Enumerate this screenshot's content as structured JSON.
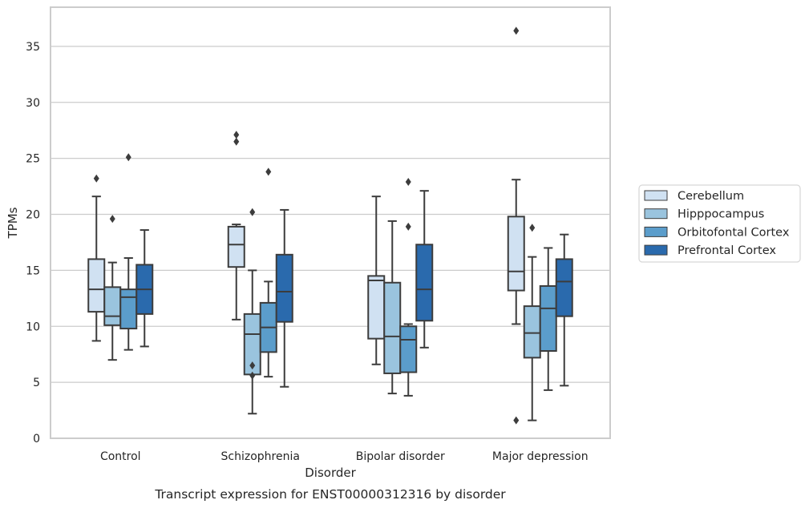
{
  "caption": "Transcript expression for ENST00000312316 by disorder",
  "chart_data": {
    "type": "box",
    "xlabel": "Disorder",
    "ylabel": "TPMs",
    "ylim": [
      0,
      38.5
    ],
    "yticks": [
      0,
      5,
      10,
      15,
      20,
      25,
      30,
      35
    ],
    "grid": "horizontal",
    "legend_position": "right",
    "categories": [
      "Control",
      "Schizophrenia",
      "Bipolar disorder",
      "Major depression"
    ],
    "series": [
      {
        "name": "Cerebellum",
        "color": "#d0e1f2",
        "boxes": [
          {
            "whisker_low": 8.7,
            "q1": 11.3,
            "median": 13.3,
            "q3": 16.0,
            "whisker_high": 21.6,
            "outliers": [
              23.2
            ]
          },
          {
            "whisker_low": 10.6,
            "q1": 15.3,
            "median": 17.3,
            "q3": 18.9,
            "whisker_high": 19.1,
            "outliers": [
              26.5,
              27.1
            ]
          },
          {
            "whisker_low": 6.6,
            "q1": 8.9,
            "median": 14.1,
            "q3": 14.5,
            "whisker_high": 21.6,
            "outliers": []
          },
          {
            "whisker_low": 10.2,
            "q1": 13.2,
            "median": 14.9,
            "q3": 19.8,
            "whisker_high": 23.1,
            "outliers": [
              1.6,
              36.4
            ]
          }
        ]
      },
      {
        "name": "Hipppocampus",
        "color": "#9ac4de",
        "boxes": [
          {
            "whisker_low": 7.0,
            "q1": 10.1,
            "median": 10.9,
            "q3": 13.5,
            "whisker_high": 15.7,
            "outliers": [
              19.6
            ]
          },
          {
            "whisker_low": 2.2,
            "q1": 5.7,
            "median": 9.3,
            "q3": 11.1,
            "whisker_high": 15.0,
            "outliers": [
              5.6,
              6.5,
              20.2
            ]
          },
          {
            "whisker_low": 4.0,
            "q1": 5.8,
            "median": 9.1,
            "q3": 13.9,
            "whisker_high": 19.4,
            "outliers": []
          },
          {
            "whisker_low": 1.6,
            "q1": 7.2,
            "median": 9.4,
            "q3": 11.8,
            "whisker_high": 16.2,
            "outliers": [
              18.8
            ]
          }
        ]
      },
      {
        "name": "Orbitofontal Cortex",
        "color": "#5b9dcb",
        "boxes": [
          {
            "whisker_low": 7.9,
            "q1": 9.8,
            "median": 12.6,
            "q3": 13.3,
            "whisker_high": 16.1,
            "outliers": [
              25.1
            ]
          },
          {
            "whisker_low": 5.5,
            "q1": 7.7,
            "median": 9.9,
            "q3": 12.1,
            "whisker_high": 14.0,
            "outliers": [
              23.8
            ]
          },
          {
            "whisker_low": 3.8,
            "q1": 5.9,
            "median": 8.8,
            "q3": 10.0,
            "whisker_high": 10.2,
            "outliers": [
              18.9,
              22.9
            ]
          },
          {
            "whisker_low": 4.3,
            "q1": 7.8,
            "median": 11.6,
            "q3": 13.6,
            "whisker_high": 17.0,
            "outliers": []
          }
        ]
      },
      {
        "name": "Prefrontal Cortex",
        "color": "#2a6aad",
        "boxes": [
          {
            "whisker_low": 8.2,
            "q1": 11.1,
            "median": 13.3,
            "q3": 15.5,
            "whisker_high": 18.6,
            "outliers": []
          },
          {
            "whisker_low": 4.6,
            "q1": 10.4,
            "median": 13.1,
            "q3": 16.4,
            "whisker_high": 20.4,
            "outliers": []
          },
          {
            "whisker_low": 8.1,
            "q1": 10.5,
            "median": 13.3,
            "q3": 17.3,
            "whisker_high": 22.1,
            "outliers": []
          },
          {
            "whisker_low": 4.7,
            "q1": 10.9,
            "median": 14.0,
            "q3": 16.0,
            "whisker_high": 18.2,
            "outliers": []
          }
        ]
      }
    ]
  }
}
